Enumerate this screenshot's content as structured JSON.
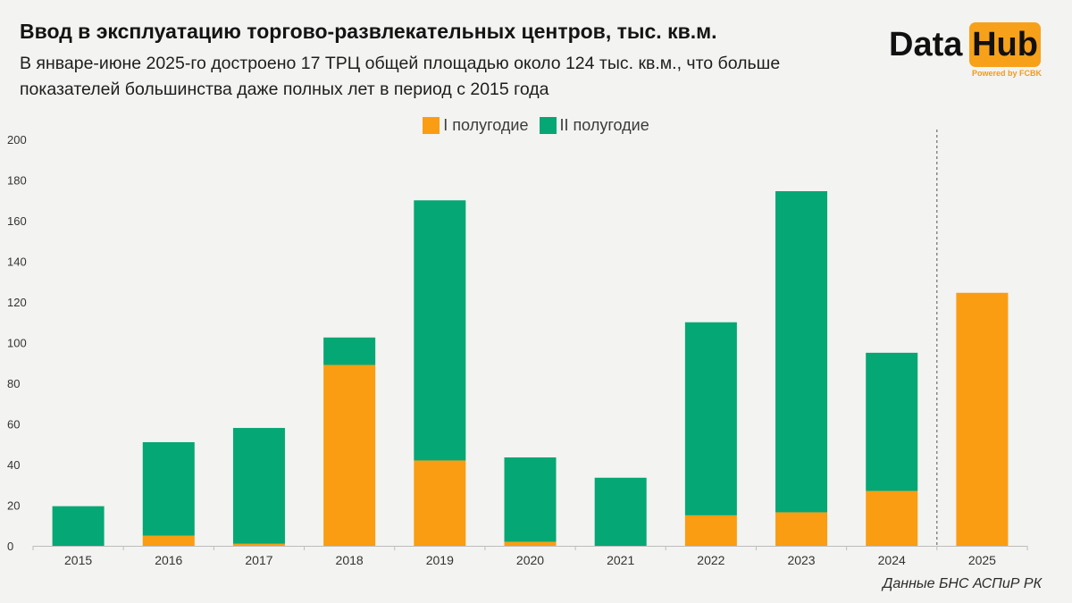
{
  "title": "Ввод в эксплуатацию торгово-развлекательных центров, тыс. кв.м.",
  "subtitle": "В январе-июне 2025-го достроено 17 ТРЦ общей площадью около 124 тыс. кв.м., что больше показателей большинства даже полных лет в период с 2015 года",
  "logo": {
    "data": "Data",
    "hub": "Hub",
    "powered": "Powered by FCBK"
  },
  "source": "Данные БНС АСПиР РК",
  "colors": {
    "h1": "#fa9d12",
    "h2": "#05a774"
  },
  "chart_data": {
    "type": "bar",
    "stacked": true,
    "categories": [
      "2015",
      "2016",
      "2017",
      "2018",
      "2019",
      "2020",
      "2021",
      "2022",
      "2023",
      "2024",
      "2025"
    ],
    "series": [
      {
        "name": "I полугодие",
        "values": [
          0,
          5,
          1,
          89,
          42,
          2,
          0,
          15,
          16.5,
          27,
          124.5
        ]
      },
      {
        "name": "II полугодие",
        "values": [
          19.5,
          46,
          57,
          13.5,
          128,
          41.5,
          33.5,
          95,
          158,
          68,
          0
        ]
      }
    ],
    "ylim": [
      0,
      200
    ],
    "yticks": [
      0,
      20,
      40,
      60,
      80,
      100,
      120,
      140,
      160,
      180,
      200
    ],
    "grid": false,
    "legend_position": "top-center",
    "separator_before": "2025"
  }
}
